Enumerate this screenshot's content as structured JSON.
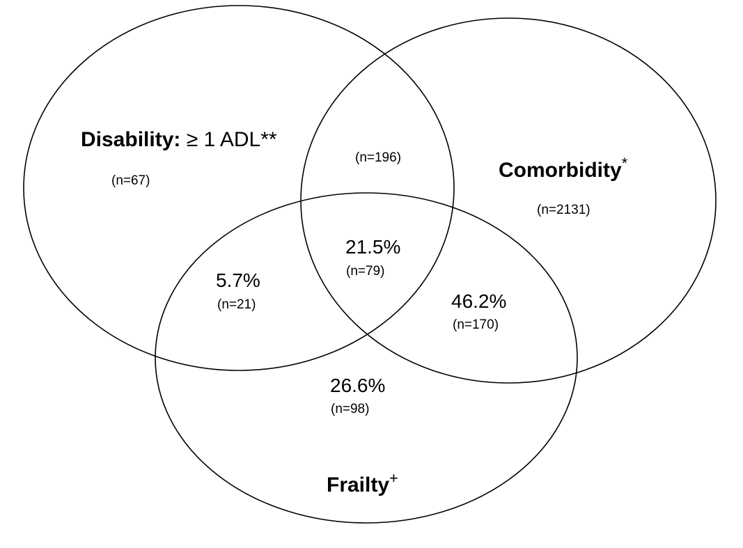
{
  "sets": {
    "disability": {
      "name": "Disability:",
      "criterion": "≥ 1 ADL**"
    },
    "comorbidity": {
      "name": "Comorbidity",
      "mark": "*"
    },
    "frailty": {
      "name": "Frailty",
      "mark": "+"
    }
  },
  "regions": {
    "disability_only": {
      "count": "(n=67)"
    },
    "disability_comorbidity": {
      "count": "(n=196)"
    },
    "comorbidity_only": {
      "count": "(n=2131)"
    },
    "all_three": {
      "percent": "21.5%",
      "count": "(n=79)"
    },
    "disability_frailty": {
      "percent": "5.7%",
      "count": "(n=21)"
    },
    "comorbidity_frailty": {
      "percent": "46.2%",
      "count": "(n=170)"
    },
    "frailty_only": {
      "percent": "26.6%",
      "count": "(n=98)"
    }
  }
}
